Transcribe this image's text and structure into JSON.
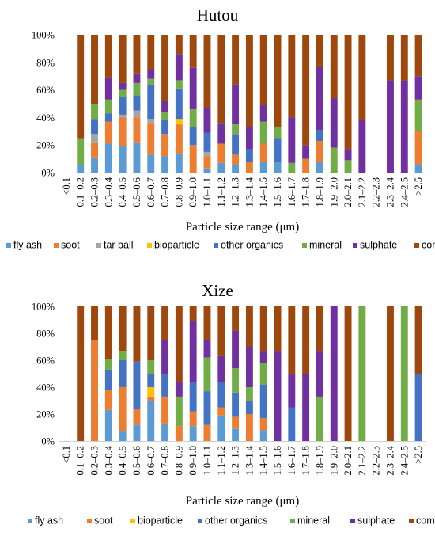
{
  "chart_data": [
    {
      "type": "bar",
      "stacked": true,
      "title": "Hutou",
      "xlabel": "Particle size range (μm)",
      "ylabel": "",
      "ylim": [
        0,
        100
      ],
      "yticks": [
        "0%",
        "20%",
        "40%",
        "60%",
        "80%",
        "100%"
      ],
      "grid": false,
      "legend_position": "bottom",
      "categories": [
        "<0.1",
        "0.1–0.2",
        "0.2–0.3",
        "0.3–0.4",
        "0.4–0.5",
        "0.5–0.6",
        "0.6–0.7",
        "0.7–0.8",
        "0.8–0.9",
        "0.9–1.0",
        "1.0–1.1",
        "1.1–1.2",
        "1.2–1.3",
        "1.3–1.4",
        "1.4–1.5",
        "1.5–1.6",
        "1.6–1.7",
        "1.7–1.8",
        "1.8–1.9",
        "1.9–2.0",
        "2.0–2.1",
        "2.1–2.2",
        "2.2–2.3",
        "2.3–2.4",
        "2.4–2.5",
        ">2.5"
      ],
      "series": [
        {
          "name": "fly ash",
          "color": "#5B9BD5",
          "values": [
            0,
            6,
            11,
            21,
            19,
            22,
            13,
            12,
            14,
            0,
            3,
            7,
            6,
            0,
            8,
            8,
            0,
            0,
            8,
            0,
            0,
            0,
            0,
            0,
            0,
            6
          ]
        },
        {
          "name": "soot",
          "color": "#ED7D31",
          "values": [
            0,
            0,
            11,
            16,
            21,
            18,
            23,
            16,
            21,
            20,
            9,
            14,
            7,
            8,
            13,
            0,
            0,
            10,
            15,
            0,
            0,
            0,
            0,
            0,
            0,
            24
          ]
        },
        {
          "name": "tar ball",
          "color": "#A5A5A5",
          "values": [
            0,
            0,
            6,
            0,
            2,
            5,
            3,
            0,
            0,
            0,
            3,
            0,
            0,
            0,
            0,
            0,
            0,
            0,
            0,
            0,
            0,
            0,
            0,
            0,
            0,
            0
          ]
        },
        {
          "name": "bioparticle",
          "color": "#FFC000",
          "values": [
            0,
            0,
            0,
            0,
            0,
            0,
            0,
            0,
            4,
            0,
            0,
            0,
            0,
            0,
            0,
            0,
            0,
            0,
            0,
            0,
            0,
            0,
            0,
            0,
            0,
            0
          ]
        },
        {
          "name": "other organics",
          "color": "#4472C4",
          "values": [
            0,
            0,
            11,
            6,
            13,
            11,
            25,
            10,
            22,
            13,
            14,
            0,
            15,
            9,
            0,
            17,
            0,
            0,
            8,
            0,
            0,
            0,
            0,
            0,
            0,
            0
          ]
        },
        {
          "name": "mineral",
          "color": "#70AD47",
          "values": [
            0,
            19,
            11,
            10,
            5,
            9,
            4,
            6,
            6,
            13,
            0,
            0,
            7,
            0,
            16,
            8,
            7,
            0,
            0,
            18,
            9,
            0,
            0,
            0,
            0,
            23
          ]
        },
        {
          "name": "sulphate",
          "color": "#7030A0",
          "values": [
            0,
            0,
            0,
            16,
            5,
            7,
            7,
            8,
            19,
            30,
            18,
            15,
            29,
            16,
            12,
            0,
            33,
            10,
            46,
            36,
            8,
            38,
            0,
            67,
            67,
            17
          ]
        },
        {
          "name": "composite particle",
          "color": "#9E480E",
          "values": [
            0,
            75,
            50,
            31,
            35,
            28,
            25,
            48,
            14,
            24,
            53,
            64,
            36,
            67,
            51,
            67,
            60,
            80,
            23,
            46,
            83,
            62,
            0,
            33,
            33,
            30
          ]
        }
      ]
    },
    {
      "type": "bar",
      "stacked": true,
      "title": "Xize",
      "xlabel": "Particle size range (μm)",
      "ylabel": "",
      "ylim": [
        0,
        100
      ],
      "yticks": [
        "0%",
        "20%",
        "40%",
        "60%",
        "80%",
        "100%"
      ],
      "grid": false,
      "legend_position": "bottom",
      "categories": [
        "<0.1",
        "0.1–0.2",
        "0.2–0.3",
        "0.3–0.4",
        "0.4–0.5",
        "0.5–0.6",
        "0.6–0.7",
        "0.7–0.8",
        "0.8–0.9",
        "0.9–1.0",
        "1.0–1.1",
        "1.1–1.2",
        "1.2–1.3",
        "1.3–1.4",
        "1.4–1.5",
        "1.5–1.6",
        "1.6–1.7",
        "1.7–1.8",
        "1.8–1.9",
        "1.9–2.0",
        "2.0–2.1",
        "2.1–2.2",
        "2.2–2.3",
        "2.3–2.4",
        "2.4–2.5",
        ">2.5"
      ],
      "series": [
        {
          "name": "fly ash",
          "color": "#5B9BD5",
          "values": [
            0,
            0,
            0,
            23,
            7,
            12,
            30,
            13,
            0,
            11,
            0,
            19,
            9,
            0,
            8,
            0,
            0,
            0,
            0,
            0,
            0,
            0,
            0,
            0,
            0,
            0
          ]
        },
        {
          "name": "soot",
          "color": "#ED7D31",
          "values": [
            0,
            0,
            75,
            15,
            33,
            12,
            3,
            20,
            11,
            11,
            12,
            6,
            9,
            20,
            9,
            0,
            0,
            0,
            0,
            0,
            0,
            0,
            0,
            0,
            0,
            0
          ]
        },
        {
          "name": "bioparticle",
          "color": "#FFC000",
          "values": [
            0,
            0,
            0,
            0,
            0,
            0,
            7,
            0,
            0,
            0,
            0,
            0,
            0,
            0,
            0,
            0,
            0,
            0,
            0,
            0,
            0,
            0,
            0,
            0,
            0,
            0
          ]
        },
        {
          "name": "other organics",
          "color": "#4472C4",
          "values": [
            0,
            0,
            0,
            15,
            20,
            35,
            10,
            17,
            0,
            22,
            25,
            19,
            18,
            10,
            25,
            0,
            25,
            0,
            0,
            0,
            0,
            0,
            0,
            0,
            0,
            50
          ]
        },
        {
          "name": "mineral",
          "color": "#70AD47",
          "values": [
            0,
            0,
            0,
            8,
            7,
            0,
            10,
            0,
            22,
            0,
            25,
            0,
            18,
            10,
            16,
            0,
            0,
            0,
            33,
            0,
            0,
            100,
            0,
            0,
            100,
            0
          ]
        },
        {
          "name": "sulphate",
          "color": "#7030A0",
          "values": [
            0,
            0,
            0,
            0,
            0,
            0,
            0,
            25,
            11,
            45,
            13,
            19,
            28,
            30,
            9,
            67,
            25,
            50,
            34,
            100,
            0,
            0,
            0,
            0,
            0,
            0
          ]
        },
        {
          "name": "composite particle",
          "color": "#9E480E",
          "values": [
            0,
            100,
            25,
            39,
            33,
            41,
            40,
            25,
            56,
            11,
            25,
            37,
            18,
            30,
            33,
            33,
            50,
            50,
            33,
            0,
            100,
            0,
            0,
            100,
            0,
            50
          ]
        }
      ]
    }
  ]
}
